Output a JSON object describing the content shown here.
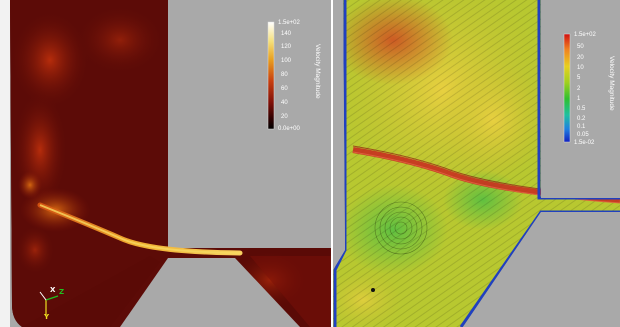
{
  "left_view": {
    "legend": {
      "title": "Velocity Magnitude",
      "max_label": "1.5e+02",
      "ticks": [
        "140",
        "120",
        "100",
        "80",
        "60",
        "40",
        "20"
      ],
      "min_label": "0.0e+00",
      "colors": [
        "#ffffff",
        "#f5e07a",
        "#e8a020",
        "#c84010",
        "#801008",
        "#300000",
        "#000000"
      ]
    },
    "axes": {
      "x": "X",
      "y": "Y",
      "z": "Z"
    },
    "background": "#a9a9a9",
    "fluid_base": "#5a0a06"
  },
  "right_view": {
    "legend": {
      "title": "Velocity Magnitude",
      "max_label": "1.5e+02",
      "ticks": [
        "50",
        "20",
        "10",
        "5",
        "2",
        "1",
        "0.5",
        "0.2",
        "0.1",
        "0.05"
      ],
      "min_label": "1.5e-02",
      "colors": [
        "#d01010",
        "#f08020",
        "#e8d020",
        "#a0d020",
        "#30c030",
        "#20c0a0",
        "#2080e0",
        "#1020c0"
      ]
    },
    "background": "#a9a9a9"
  }
}
